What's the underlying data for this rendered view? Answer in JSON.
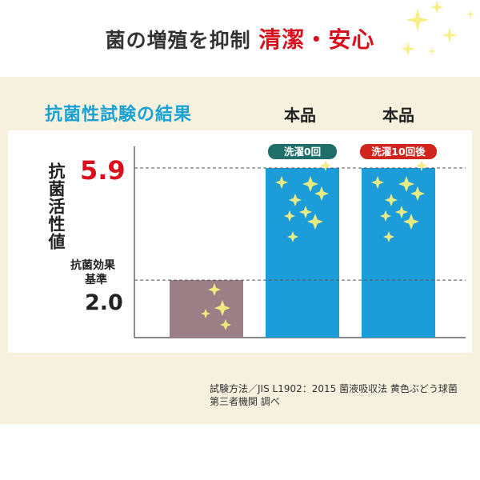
{
  "header": {
    "headline_plain": "菌の増殖を抑制",
    "headline_emphasis": "清潔・安心"
  },
  "panel": {
    "title": "抗菌性試験の結果",
    "column_headers": [
      "本品",
      "本品"
    ]
  },
  "colors": {
    "accent_blue": "#1aa2d3",
    "emphasis_red": "#d8101d",
    "panel_bg": "#f6f1de",
    "bar_blue": "#1c9dd9",
    "bar_reference": "#9a7f86",
    "tag_green": "#1e6f69",
    "tag_red": "#d0241c"
  },
  "chart_data": {
    "type": "bar",
    "title": "抗菌性試験の結果",
    "xlabel": "",
    "ylabel": "抗菌活性値",
    "categories": [
      "抗菌効果基準",
      "洗濯0回",
      "洗濯10回後"
    ],
    "values": [
      2.0,
      5.9,
      5.9
    ],
    "ylim": [
      0,
      5.9
    ],
    "reference_lines": [
      {
        "value": 5.9,
        "label": "5.9"
      },
      {
        "value": 2.0,
        "label": "2.0",
        "sublabel": "抗菌効果基準"
      }
    ],
    "bar_tags": [
      "",
      "洗濯0回",
      "洗濯10回後"
    ],
    "grid": false,
    "legend": "none"
  },
  "footnote": {
    "line1": "試験方法／JIS L1902：2015 菌液吸収法 黄色ぶどう球菌",
    "line2": "第三者機関 調べ"
  }
}
